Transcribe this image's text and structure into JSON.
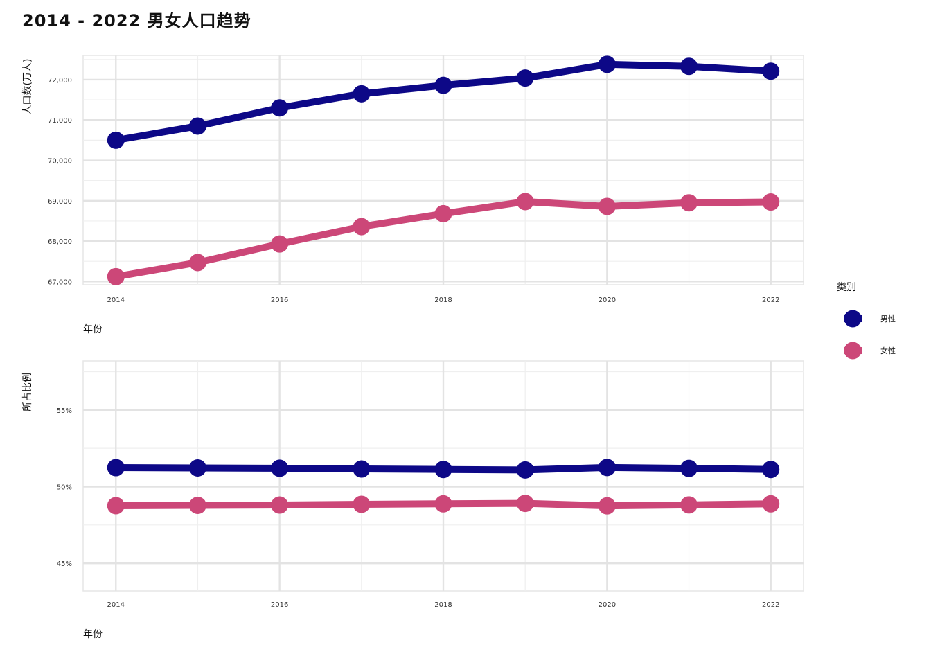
{
  "title": "2014 - 2022 男女人口趋势",
  "legend": {
    "title": "类别",
    "items": [
      {
        "label": "男性",
        "color": "#0d0887"
      },
      {
        "label": "女性",
        "color": "#cc4778"
      }
    ]
  },
  "chart_data": [
    {
      "type": "line",
      "xlabel": "年份",
      "ylabel": "人口数(万人)",
      "x": [
        2014,
        2015,
        2016,
        2017,
        2018,
        2019,
        2020,
        2021,
        2022
      ],
      "xticks": [
        2014,
        2016,
        2018,
        2020,
        2022
      ],
      "xtick_labels": [
        "2014",
        "2016",
        "2018",
        "2020",
        "2022"
      ],
      "yticks": [
        67000,
        68000,
        69000,
        70000,
        71000,
        72000
      ],
      "ytick_labels": [
        "67,000",
        "68,000",
        "69,000",
        "70,000",
        "71,000",
        "72,000"
      ],
      "ylim": [
        66920,
        72600
      ],
      "xlim": [
        2013.6,
        2022.4
      ],
      "grid": true,
      "series": [
        {
          "name": "男性",
          "color": "#0d0887",
          "values": [
            70500,
            70850,
            71300,
            71650,
            71860,
            72040,
            72380,
            72330,
            72210
          ]
        },
        {
          "name": "女性",
          "color": "#cc4778",
          "values": [
            67120,
            67470,
            67930,
            68360,
            68680,
            68980,
            68860,
            68950,
            68970
          ]
        }
      ]
    },
    {
      "type": "line",
      "xlabel": "年份",
      "ylabel": "所占比例",
      "x": [
        2014,
        2015,
        2016,
        2017,
        2018,
        2019,
        2020,
        2021,
        2022
      ],
      "xticks": [
        2014,
        2016,
        2018,
        2020,
        2022
      ],
      "xtick_labels": [
        "2014",
        "2016",
        "2018",
        "2020",
        "2022"
      ],
      "yticks": [
        45,
        50,
        55
      ],
      "ytick_labels": [
        "45%",
        "50%",
        "55%"
      ],
      "ylim": [
        43.2,
        58.2
      ],
      "xlim": [
        2013.6,
        2022.4
      ],
      "grid": true,
      "series": [
        {
          "name": "男性",
          "color": "#0d0887",
          "values": [
            51.24,
            51.22,
            51.2,
            51.15,
            51.12,
            51.09,
            51.25,
            51.19,
            51.12
          ]
        },
        {
          "name": "女性",
          "color": "#cc4778",
          "values": [
            48.76,
            48.78,
            48.8,
            48.85,
            48.88,
            48.91,
            48.75,
            48.81,
            48.88
          ]
        }
      ]
    }
  ]
}
